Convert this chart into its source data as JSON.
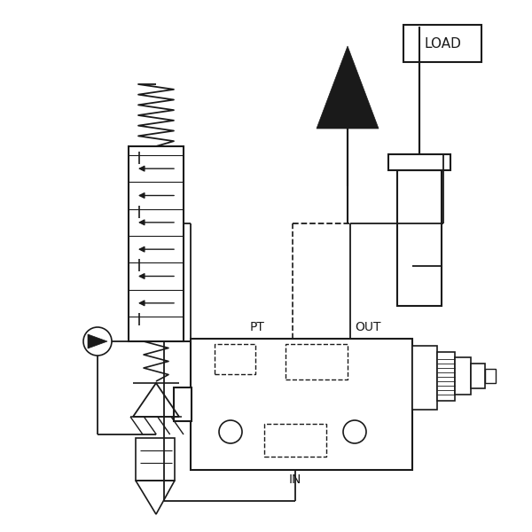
{
  "bg_color": "#ffffff",
  "line_color": "#1a1a1a",
  "lw": 1.2,
  "figsize": [
    6.0,
    6.0
  ],
  "dpi": 100,
  "xlim": [
    0,
    600
  ],
  "ylim": [
    0,
    600
  ]
}
